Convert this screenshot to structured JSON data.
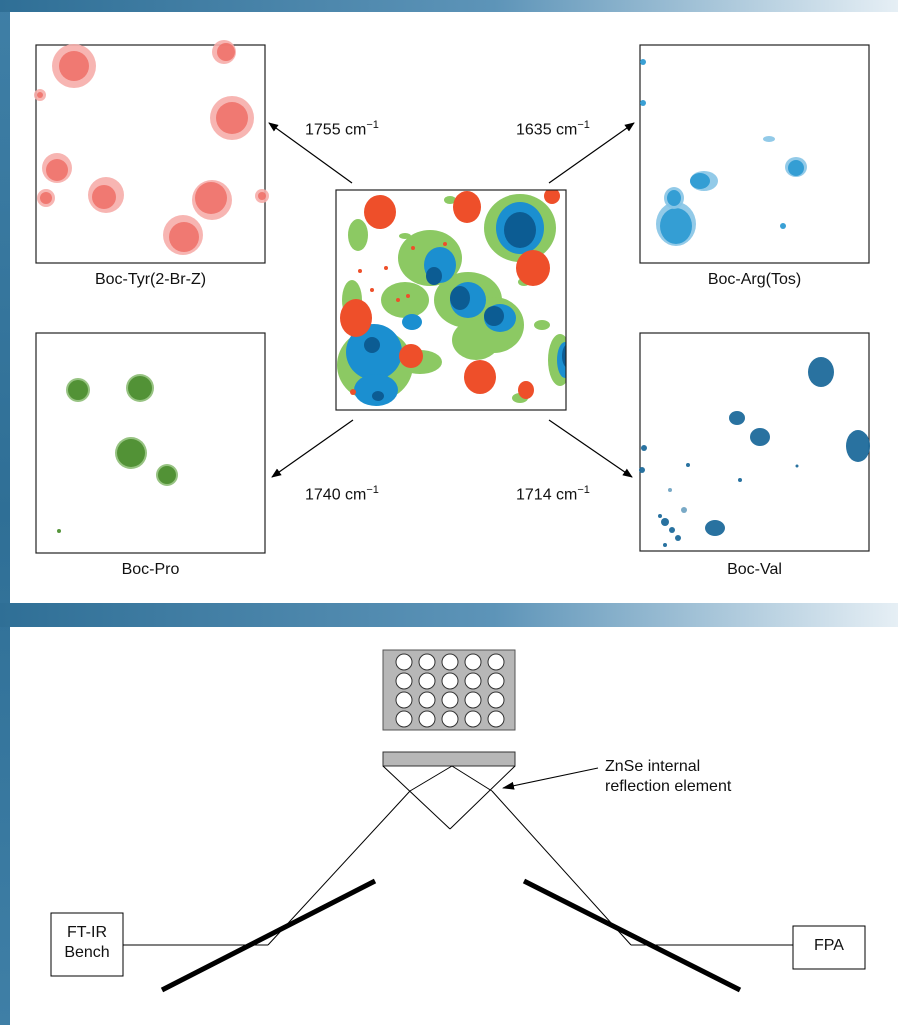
{
  "panels": {
    "tyr": {
      "label": "Boc-Tyr(2-Br-Z)",
      "wavenumber": "1755",
      "color": "#ef6f66",
      "edge": "#f6adaa"
    },
    "arg": {
      "label": "Boc-Arg(Tos)",
      "wavenumber": "1635",
      "color": "#2f9bd3",
      "edge": "#86c4e6"
    },
    "pro": {
      "label": "Boc-Pro",
      "wavenumber": "1740",
      "color": "#4e8f32",
      "edge": "#8cbc74"
    },
    "val": {
      "label": "Boc-Val",
      "wavenumber": "1714",
      "color": "#1d6a9b",
      "edge": "#6aa0c0"
    }
  },
  "unit": "cm",
  "unit_exponent": "−1",
  "setup": {
    "rie_label_line1": "ZnSe internal",
    "rie_label_line2": "reflection element",
    "bench_line1": "FT-IR",
    "bench_line2": "Bench",
    "detector": "FPA",
    "well_rows": 4,
    "well_cols": 5
  },
  "colors": {
    "composite_red": "#ee4f2a",
    "composite_green": "#8cc963",
    "composite_blue": "#1b8fd0",
    "composite_navy": "#0c5c93",
    "plate_fill": "#b7b7b7"
  }
}
